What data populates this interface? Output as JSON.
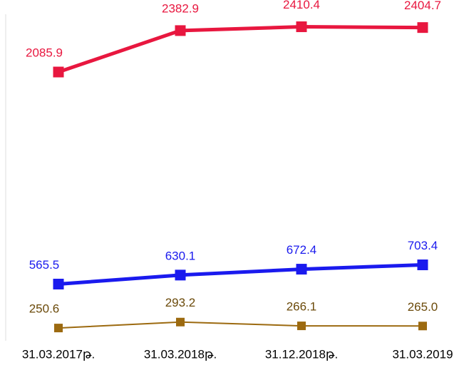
{
  "chart_data": {
    "type": "line",
    "categories": [
      "31.03.2017թ.",
      "31.03.2018թ.",
      "31.12.2018թ.",
      "31.03.2019"
    ],
    "series": [
      {
        "name": null,
        "color": "#e8173f",
        "label_color": "#e8173f",
        "values": [
          2085.9,
          2382.9,
          2410.4,
          2404.7
        ],
        "value_labels": [
          "2085.9",
          "2382.9",
          "2410.4",
          "2404.7"
        ]
      },
      {
        "name": null,
        "color": "#1a1aee",
        "label_color": "#1a1aee",
        "values": [
          565.5,
          630.1,
          672.4,
          703.4
        ],
        "value_labels": [
          "565.5",
          "630.1",
          "672.4",
          "703.4"
        ]
      },
      {
        "name": null,
        "color": "#9c6a10",
        "label_color": "#6b4a0a",
        "values": [
          250.6,
          293.2,
          266.1,
          265.0
        ],
        "value_labels": [
          "250.6",
          "293.2",
          "266.1",
          "265.0"
        ]
      }
    ],
    "ylim": [
      200,
      2500
    ]
  }
}
